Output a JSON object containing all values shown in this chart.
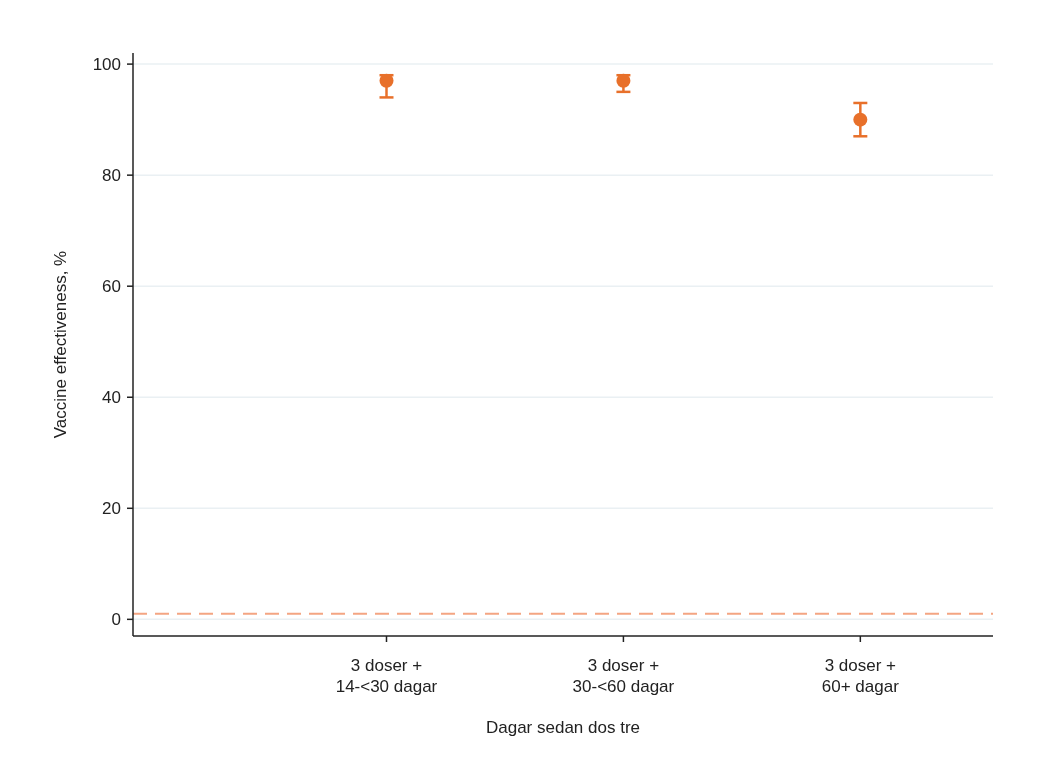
{
  "chart_data": {
    "type": "scatter",
    "xlabel": "Dagar sedan dos tre",
    "ylabel": "Vaccine effectiveness, %",
    "categories": [
      "3 doser +\n14-<30 dagar",
      "3 doser +\n30-<60 dagar",
      "3 doser +\n60+ dagar"
    ],
    "series": [
      {
        "color": "#e8702a",
        "values": [
          97,
          97,
          90
        ],
        "errors": [
          [
            94,
            98
          ],
          [
            95,
            98
          ],
          [
            87,
            93
          ]
        ]
      }
    ],
    "ylim": [
      -3,
      102
    ],
    "yticks": [
      0,
      20,
      40,
      60,
      80,
      100
    ],
    "grid": "y",
    "marker": "circle",
    "ref_lines": [
      {
        "axis": "y",
        "value": 1,
        "color": "#f4a582",
        "line_style": "dashed"
      }
    ]
  }
}
